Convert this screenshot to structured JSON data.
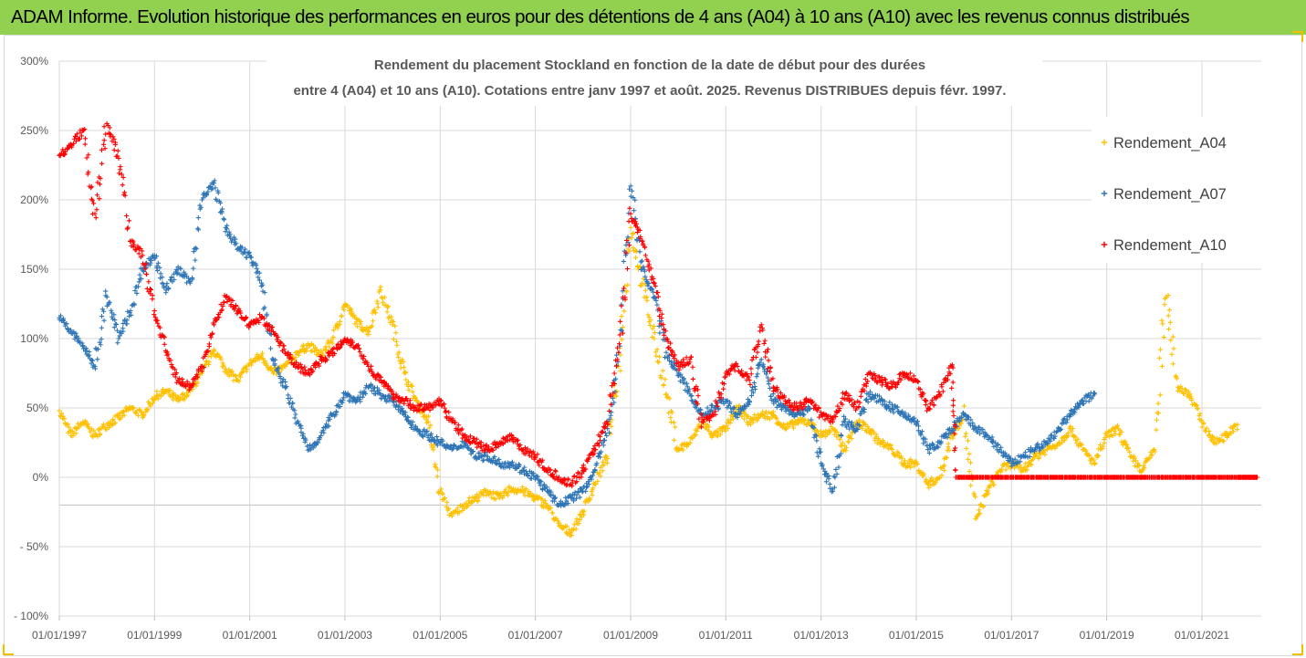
{
  "banner": {
    "text": "ADAM Informe. Evolution historique des performances en euros pour des détentions de 4 ans (A04) à 10 ans (A10) avec les revenus connus distribués"
  },
  "colors": {
    "banner_bg": "#92d050",
    "frame_corner": "#f0c000",
    "A04": "#ffc000",
    "A07": "#2e75b6",
    "A10": "#ff0000",
    "grid": "#d9d9d9",
    "text": "#595959"
  },
  "chart_data": {
    "type": "scatter",
    "title": "Rendement du placement Stockland en fonction de la date de début pour des durées entre 4 (A04) et 10 ans (A10). Cotations entre janv 1997 et août. 2025. Revenus DISTRIBUES depuis févr. 1997.",
    "title_lines": [
      "Rendement du placement Stockland en fonction de la date de début pour des durées",
      "entre 4 (A04) et 10 ans (A10). Cotations entre janv 1997 et août. 2025. Revenus DISTRIBUES depuis févr. 1997."
    ],
    "marker": "+",
    "xlim": [
      "1997-01-01",
      "2022-04-01"
    ],
    "ylim": [
      -100,
      300
    ],
    "y_ticks": [
      "300%",
      "250%",
      "200%",
      "150%",
      "100%",
      "50%",
      "0%",
      "- 50%",
      "- 100%"
    ],
    "y_tick_values": [
      300,
      250,
      200,
      150,
      100,
      50,
      0,
      -50,
      -100
    ],
    "x_ticks": [
      "01/01/1997",
      "01/01/1999",
      "01/01/2001",
      "01/01/2003",
      "01/01/2005",
      "01/01/2007",
      "01/01/2009",
      "01/01/2011",
      "01/01/2013",
      "01/01/2015",
      "01/01/2017",
      "01/01/2019",
      "01/01/2021"
    ],
    "grid": true,
    "legend_position": "right",
    "series": [
      {
        "name": "Rendement_A04",
        "points": [
          [
            "1997-01-01",
            48
          ],
          [
            "1997-04-01",
            30
          ],
          [
            "1997-07-01",
            40
          ],
          [
            "1997-10-01",
            30
          ],
          [
            "1998-01-01",
            38
          ],
          [
            "1998-04-01",
            43
          ],
          [
            "1998-07-01",
            50
          ],
          [
            "1998-10-01",
            45
          ],
          [
            "1999-01-01",
            58
          ],
          [
            "1999-04-01",
            62
          ],
          [
            "1999-07-01",
            55
          ],
          [
            "1999-10-01",
            62
          ],
          [
            "2000-01-01",
            75
          ],
          [
            "2000-04-01",
            92
          ],
          [
            "2000-07-01",
            78
          ],
          [
            "2000-10-01",
            70
          ],
          [
            "2001-01-01",
            82
          ],
          [
            "2001-04-01",
            88
          ],
          [
            "2001-07-01",
            75
          ],
          [
            "2001-10-01",
            80
          ],
          [
            "2002-01-01",
            90
          ],
          [
            "2002-04-01",
            95
          ],
          [
            "2002-07-01",
            88
          ],
          [
            "2002-10-01",
            100
          ],
          [
            "2003-01-01",
            125
          ],
          [
            "2003-04-01",
            112
          ],
          [
            "2003-07-01",
            105
          ],
          [
            "2003-10-01",
            135
          ],
          [
            "2004-01-01",
            110
          ],
          [
            "2004-04-01",
            75
          ],
          [
            "2004-07-01",
            55
          ],
          [
            "2004-10-01",
            40
          ],
          [
            "2005-01-01",
            -10
          ],
          [
            "2005-04-01",
            -28
          ],
          [
            "2005-07-01",
            -20
          ],
          [
            "2005-10-01",
            -15
          ],
          [
            "2006-01-01",
            -10
          ],
          [
            "2006-04-01",
            -15
          ],
          [
            "2006-07-01",
            -8
          ],
          [
            "2006-10-01",
            -10
          ],
          [
            "2007-01-01",
            -15
          ],
          [
            "2007-04-01",
            -20
          ],
          [
            "2007-07-01",
            -35
          ],
          [
            "2007-10-01",
            -40
          ],
          [
            "2008-01-01",
            -25
          ],
          [
            "2008-04-01",
            -5
          ],
          [
            "2008-07-01",
            15
          ],
          [
            "2008-10-01",
            80
          ],
          [
            "2009-01-01",
            180
          ],
          [
            "2009-04-01",
            140
          ],
          [
            "2009-07-01",
            100
          ],
          [
            "2009-10-01",
            60
          ],
          [
            "2010-01-01",
            20
          ],
          [
            "2010-04-01",
            25
          ],
          [
            "2010-07-01",
            40
          ],
          [
            "2010-10-01",
            30
          ],
          [
            "2011-01-01",
            35
          ],
          [
            "2011-04-01",
            50
          ],
          [
            "2011-07-01",
            40
          ],
          [
            "2011-10-01",
            45
          ],
          [
            "2012-01-01",
            45
          ],
          [
            "2012-04-01",
            35
          ],
          [
            "2012-07-01",
            40
          ],
          [
            "2012-10-01",
            40
          ],
          [
            "2013-01-01",
            30
          ],
          [
            "2013-04-01",
            35
          ],
          [
            "2013-07-01",
            20
          ],
          [
            "2013-10-01",
            40
          ],
          [
            "2014-01-01",
            35
          ],
          [
            "2014-04-01",
            25
          ],
          [
            "2014-07-01",
            20
          ],
          [
            "2014-10-01",
            10
          ],
          [
            "2015-01-01",
            10
          ],
          [
            "2015-04-01",
            -5
          ],
          [
            "2015-07-01",
            0
          ],
          [
            "2015-10-01",
            30
          ],
          [
            "2016-01-01",
            45
          ],
          [
            "2016-04-01",
            -30
          ],
          [
            "2016-07-01",
            -10
          ],
          [
            "2016-10-01",
            5
          ],
          [
            "2017-01-01",
            10
          ],
          [
            "2017-04-01",
            5
          ],
          [
            "2017-07-01",
            15
          ],
          [
            "2017-10-01",
            20
          ],
          [
            "2018-01-01",
            25
          ],
          [
            "2018-04-01",
            35
          ],
          [
            "2018-07-01",
            20
          ],
          [
            "2018-10-01",
            10
          ],
          [
            "2019-01-01",
            30
          ],
          [
            "2019-04-01",
            35
          ],
          [
            "2019-07-01",
            15
          ],
          [
            "2019-10-01",
            5
          ],
          [
            "2020-01-01",
            20
          ],
          [
            "2020-04-01",
            130
          ],
          [
            "2020-07-01",
            65
          ],
          [
            "2020-10-01",
            60
          ],
          [
            "2021-01-01",
            40
          ],
          [
            "2021-04-01",
            25
          ],
          [
            "2021-07-01",
            30
          ],
          [
            "2021-10-01",
            38
          ]
        ]
      },
      {
        "name": "Rendement_A07",
        "points": [
          [
            "1997-01-01",
            115
          ],
          [
            "1997-04-01",
            105
          ],
          [
            "1997-07-01",
            95
          ],
          [
            "1997-10-01",
            80
          ],
          [
            "1998-01-01",
            130
          ],
          [
            "1998-04-01",
            100
          ],
          [
            "1998-07-01",
            120
          ],
          [
            "1998-10-01",
            150
          ],
          [
            "1999-01-01",
            160
          ],
          [
            "1999-04-01",
            135
          ],
          [
            "1999-07-01",
            150
          ],
          [
            "1999-10-01",
            140
          ],
          [
            "2000-01-01",
            200
          ],
          [
            "2000-04-01",
            212
          ],
          [
            "2000-07-01",
            180
          ],
          [
            "2000-10-01",
            165
          ],
          [
            "2001-01-01",
            160
          ],
          [
            "2001-04-01",
            140
          ],
          [
            "2001-07-01",
            85
          ],
          [
            "2001-10-01",
            65
          ],
          [
            "2002-01-01",
            40
          ],
          [
            "2002-04-01",
            20
          ],
          [
            "2002-07-01",
            30
          ],
          [
            "2002-10-01",
            45
          ],
          [
            "2003-01-01",
            60
          ],
          [
            "2003-04-01",
            55
          ],
          [
            "2003-07-01",
            65
          ],
          [
            "2003-10-01",
            60
          ],
          [
            "2004-01-01",
            55
          ],
          [
            "2004-04-01",
            45
          ],
          [
            "2004-07-01",
            35
          ],
          [
            "2004-10-01",
            30
          ],
          [
            "2005-01-01",
            25
          ],
          [
            "2005-04-01",
            20
          ],
          [
            "2005-07-01",
            25
          ],
          [
            "2005-10-01",
            15
          ],
          [
            "2006-01-01",
            15
          ],
          [
            "2006-04-01",
            10
          ],
          [
            "2006-07-01",
            10
          ],
          [
            "2006-10-01",
            5
          ],
          [
            "2007-01-01",
            0
          ],
          [
            "2007-04-01",
            -10
          ],
          [
            "2007-07-01",
            -20
          ],
          [
            "2007-10-01",
            -15
          ],
          [
            "2008-01-01",
            -10
          ],
          [
            "2008-04-01",
            5
          ],
          [
            "2008-07-01",
            30
          ],
          [
            "2008-10-01",
            90
          ],
          [
            "2009-01-01",
            210
          ],
          [
            "2009-04-01",
            150
          ],
          [
            "2009-07-01",
            130
          ],
          [
            "2009-10-01",
            90
          ],
          [
            "2010-01-01",
            75
          ],
          [
            "2010-04-01",
            60
          ],
          [
            "2010-07-01",
            45
          ],
          [
            "2010-10-01",
            50
          ],
          [
            "2011-01-01",
            55
          ],
          [
            "2011-04-01",
            45
          ],
          [
            "2011-07-01",
            55
          ],
          [
            "2011-10-01",
            85
          ],
          [
            "2012-01-01",
            55
          ],
          [
            "2012-04-01",
            50
          ],
          [
            "2012-07-01",
            45
          ],
          [
            "2012-10-01",
            50
          ],
          [
            "2013-01-01",
            10
          ],
          [
            "2013-04-01",
            -10
          ],
          [
            "2013-07-01",
            40
          ],
          [
            "2013-10-01",
            35
          ],
          [
            "2014-01-01",
            60
          ],
          [
            "2014-04-01",
            55
          ],
          [
            "2014-07-01",
            50
          ],
          [
            "2014-10-01",
            45
          ],
          [
            "2015-01-01",
            40
          ],
          [
            "2015-04-01",
            20
          ],
          [
            "2015-07-01",
            25
          ],
          [
            "2015-10-01",
            35
          ],
          [
            "2016-01-01",
            45
          ],
          [
            "2016-04-01",
            35
          ],
          [
            "2016-07-01",
            30
          ],
          [
            "2016-10-01",
            20
          ],
          [
            "2017-01-01",
            10
          ],
          [
            "2017-04-01",
            15
          ],
          [
            "2017-07-01",
            20
          ],
          [
            "2017-10-01",
            25
          ],
          [
            "2018-01-01",
            35
          ],
          [
            "2018-04-01",
            45
          ],
          [
            "2018-07-01",
            55
          ],
          [
            "2018-10-01",
            60
          ]
        ]
      },
      {
        "name": "Rendement_A10",
        "points": [
          [
            "1997-01-01",
            232
          ],
          [
            "1997-04-01",
            240
          ],
          [
            "1997-07-01",
            250
          ],
          [
            "1997-10-01",
            190
          ],
          [
            "1998-01-01",
            255
          ],
          [
            "1998-04-01",
            230
          ],
          [
            "1998-07-01",
            170
          ],
          [
            "1998-10-01",
            160
          ],
          [
            "1999-01-01",
            120
          ],
          [
            "1999-04-01",
            90
          ],
          [
            "1999-07-01",
            70
          ],
          [
            "1999-10-01",
            65
          ],
          [
            "2000-01-01",
            80
          ],
          [
            "2000-04-01",
            110
          ],
          [
            "2000-07-01",
            130
          ],
          [
            "2000-10-01",
            120
          ],
          [
            "2001-01-01",
            110
          ],
          [
            "2001-04-01",
            115
          ],
          [
            "2001-07-01",
            105
          ],
          [
            "2001-10-01",
            90
          ],
          [
            "2002-01-01",
            80
          ],
          [
            "2002-04-01",
            75
          ],
          [
            "2002-07-01",
            85
          ],
          [
            "2002-10-01",
            90
          ],
          [
            "2003-01-01",
            100
          ],
          [
            "2003-04-01",
            95
          ],
          [
            "2003-07-01",
            80
          ],
          [
            "2003-10-01",
            70
          ],
          [
            "2004-01-01",
            60
          ],
          [
            "2004-04-01",
            55
          ],
          [
            "2004-07-01",
            50
          ],
          [
            "2004-10-01",
            50
          ],
          [
            "2005-01-01",
            55
          ],
          [
            "2005-04-01",
            40
          ],
          [
            "2005-07-01",
            30
          ],
          [
            "2005-10-01",
            25
          ],
          [
            "2006-01-01",
            20
          ],
          [
            "2006-04-01",
            25
          ],
          [
            "2006-07-01",
            30
          ],
          [
            "2006-10-01",
            20
          ],
          [
            "2007-01-01",
            15
          ],
          [
            "2007-04-01",
            5
          ],
          [
            "2007-07-01",
            0
          ],
          [
            "2007-10-01",
            -5
          ],
          [
            "2008-01-01",
            5
          ],
          [
            "2008-04-01",
            20
          ],
          [
            "2008-07-01",
            40
          ],
          [
            "2008-10-01",
            90
          ],
          [
            "2009-01-01",
            190
          ],
          [
            "2009-04-01",
            170
          ],
          [
            "2009-07-01",
            140
          ],
          [
            "2009-10-01",
            100
          ],
          [
            "2010-01-01",
            80
          ],
          [
            "2010-04-01",
            85
          ],
          [
            "2010-07-01",
            40
          ],
          [
            "2010-10-01",
            45
          ],
          [
            "2011-01-01",
            75
          ],
          [
            "2011-04-01",
            80
          ],
          [
            "2011-07-01",
            70
          ],
          [
            "2011-10-01",
            110
          ],
          [
            "2012-01-01",
            65
          ],
          [
            "2012-04-01",
            55
          ],
          [
            "2012-07-01",
            50
          ],
          [
            "2012-10-01",
            55
          ],
          [
            "2013-01-01",
            45
          ],
          [
            "2013-04-01",
            40
          ],
          [
            "2013-07-01",
            60
          ],
          [
            "2013-10-01",
            50
          ],
          [
            "2014-01-01",
            75
          ],
          [
            "2014-04-01",
            70
          ],
          [
            "2014-07-01",
            65
          ],
          [
            "2014-10-01",
            75
          ],
          [
            "2015-01-01",
            70
          ],
          [
            "2015-04-01",
            50
          ],
          [
            "2015-07-01",
            60
          ],
          [
            "2015-10-01",
            80
          ],
          [
            "2015-11-01",
            0
          ],
          [
            "2016-07-01",
            0
          ],
          [
            "2017-04-01",
            0
          ],
          [
            "2018-01-01",
            0
          ],
          [
            "2018-10-01",
            0
          ],
          [
            "2019-07-01",
            0
          ],
          [
            "2020-04-01",
            0
          ],
          [
            "2021-01-01",
            0
          ],
          [
            "2021-10-01",
            0
          ],
          [
            "2022-03-01",
            0
          ]
        ]
      }
    ]
  }
}
